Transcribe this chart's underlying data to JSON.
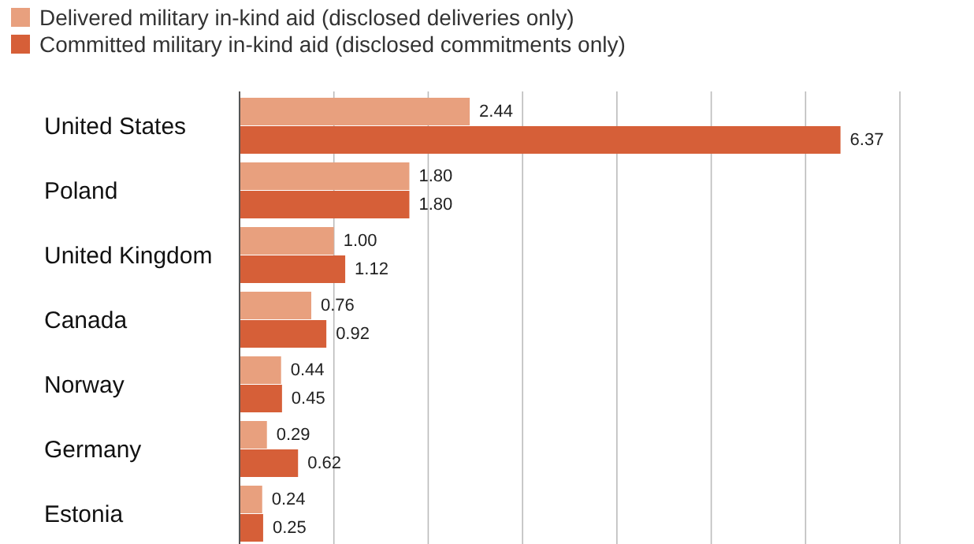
{
  "chart_data": {
    "type": "bar",
    "orientation": "horizontal",
    "categories": [
      "United States",
      "Poland",
      "United Kingdom",
      "Canada",
      "Norway",
      "Germany",
      "Estonia"
    ],
    "series": [
      {
        "name": "Delivered military in-kind aid (disclosed deliveries only)",
        "color": "#e8a07e",
        "values": [
          2.44,
          1.8,
          1.0,
          0.76,
          0.44,
          0.29,
          0.24
        ],
        "value_labels": [
          "2.44",
          "1.80",
          "1.00",
          "0.76",
          "0.44",
          "0.29",
          "0.24"
        ]
      },
      {
        "name": "Committed military in-kind aid (disclosed commitments only)",
        "color": "#d65f38",
        "values": [
          6.37,
          1.8,
          1.12,
          0.92,
          0.45,
          0.62,
          0.25
        ],
        "value_labels": [
          "6.37",
          "1.80",
          "1.12",
          "0.92",
          "0.45",
          "0.62",
          "0.25"
        ]
      }
    ],
    "xlim": [
      0,
      7
    ],
    "xticks": [
      {
        "value": 0,
        "label": null
      },
      {
        "value": 1,
        "label": null
      },
      {
        "value": 2,
        "label": null
      },
      {
        "value": 3,
        "label": null
      },
      {
        "value": 4,
        "label": null
      },
      {
        "value": 5,
        "label": null
      },
      {
        "value": 6,
        "label": null
      },
      {
        "value": 7,
        "label": null
      }
    ],
    "tick_labels": "y",
    "grid": "x",
    "legend": "top left"
  }
}
